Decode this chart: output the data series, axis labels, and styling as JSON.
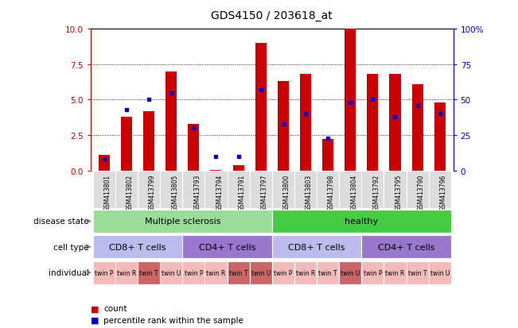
{
  "title": "GDS4150 / 203618_at",
  "samples": [
    "GSM413801",
    "GSM413802",
    "GSM413799",
    "GSM413805",
    "GSM413793",
    "GSM413794",
    "GSM413791",
    "GSM413797",
    "GSM413800",
    "GSM413803",
    "GSM413798",
    "GSM413804",
    "GSM413792",
    "GSM413795",
    "GSM413790",
    "GSM413796"
  ],
  "counts": [
    1.1,
    3.8,
    4.2,
    7.0,
    3.3,
    0.05,
    0.4,
    9.0,
    6.3,
    6.8,
    2.2,
    10.0,
    6.8,
    6.8,
    6.1,
    4.8
  ],
  "percentiles": [
    8,
    43,
    50,
    55,
    30,
    10,
    10,
    57,
    33,
    40,
    23,
    48,
    50,
    38,
    46,
    40
  ],
  "ylim_left": [
    0,
    10
  ],
  "ylim_right": [
    0,
    100
  ],
  "yticks_left": [
    0,
    2.5,
    5.0,
    7.5,
    10
  ],
  "yticks_right": [
    0,
    25,
    50,
    75,
    100
  ],
  "bar_color": "#cc0000",
  "dot_color": "#0000cc",
  "disease_state": [
    {
      "label": "Multiple sclerosis",
      "start": 0,
      "end": 8,
      "color": "#99dd99"
    },
    {
      "label": "healthy",
      "start": 8,
      "end": 16,
      "color": "#44cc44"
    }
  ],
  "cell_type": [
    {
      "label": "CD8+ T cells",
      "start": 0,
      "end": 4,
      "color": "#bbbbee"
    },
    {
      "label": "CD4+ T cells",
      "start": 4,
      "end": 8,
      "color": "#9977cc"
    },
    {
      "label": "CD8+ T cells",
      "start": 8,
      "end": 12,
      "color": "#bbbbee"
    },
    {
      "label": "CD4+ T cells",
      "start": 12,
      "end": 16,
      "color": "#9977cc"
    }
  ],
  "individual": [
    {
      "label": "twin P",
      "start": 0,
      "end": 1,
      "color": "#f4bbbb"
    },
    {
      "label": "twin R",
      "start": 1,
      "end": 2,
      "color": "#f4bbbb"
    },
    {
      "label": "twin T",
      "start": 2,
      "end": 3,
      "color": "#cc6666"
    },
    {
      "label": "twin U",
      "start": 3,
      "end": 4,
      "color": "#f4bbbb"
    },
    {
      "label": "twin P",
      "start": 4,
      "end": 5,
      "color": "#f4bbbb"
    },
    {
      "label": "twin R",
      "start": 5,
      "end": 6,
      "color": "#f4bbbb"
    },
    {
      "label": "twin T",
      "start": 6,
      "end": 7,
      "color": "#cc6666"
    },
    {
      "label": "twin U",
      "start": 7,
      "end": 8,
      "color": "#cc6666"
    },
    {
      "label": "twin P",
      "start": 8,
      "end": 9,
      "color": "#f4bbbb"
    },
    {
      "label": "twin R",
      "start": 9,
      "end": 10,
      "color": "#f4bbbb"
    },
    {
      "label": "twin T",
      "start": 10,
      "end": 11,
      "color": "#f4bbbb"
    },
    {
      "label": "twin U",
      "start": 11,
      "end": 12,
      "color": "#cc6666"
    },
    {
      "label": "twin P",
      "start": 12,
      "end": 13,
      "color": "#f4bbbb"
    },
    {
      "label": "twin R",
      "start": 13,
      "end": 14,
      "color": "#f4bbbb"
    },
    {
      "label": "twin T",
      "start": 14,
      "end": 15,
      "color": "#f4bbbb"
    },
    {
      "label": "twin U",
      "start": 15,
      "end": 16,
      "color": "#f4bbbb"
    }
  ],
  "left_ylabel_color": "#cc0000",
  "right_ylabel_color": "#0000cc",
  "annotation_left": "count",
  "annotation_right": "percentile rank within the sample",
  "bg_color": "#ffffff",
  "sample_bg_color": "#dddddd",
  "row_label_fontsize": 7.5,
  "bar_width": 0.5
}
